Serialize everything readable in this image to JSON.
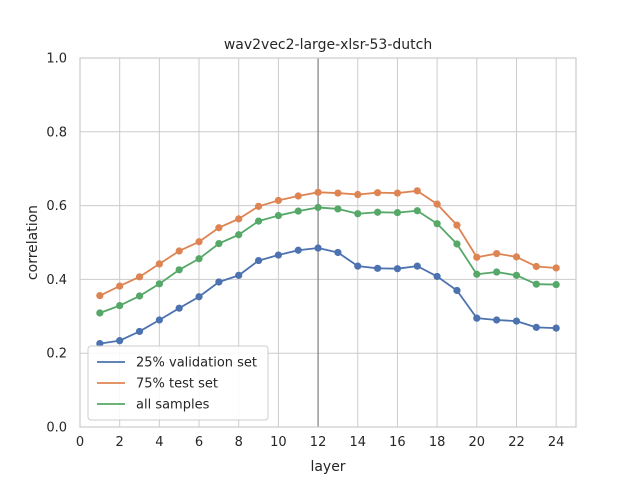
{
  "chart_data": {
    "type": "line",
    "title": "wav2vec2-large-xlsr-53-dutch",
    "xlabel": "layer",
    "ylabel": "correlation",
    "xlim": [
      0,
      25
    ],
    "ylim": [
      0.0,
      1.0
    ],
    "xticks": [
      0,
      2,
      4,
      6,
      8,
      10,
      12,
      14,
      16,
      18,
      20,
      22,
      24
    ],
    "yticks": [
      0.0,
      0.2,
      0.4,
      0.6,
      0.8,
      1.0
    ],
    "ytick_labels": [
      "0.0",
      "0.2",
      "0.4",
      "0.6",
      "0.8",
      "1.0"
    ],
    "grid": true,
    "legend_position": "lower-left",
    "vertical_reference_line": {
      "x": 12,
      "color": "#808080"
    },
    "x": [
      1,
      2,
      3,
      4,
      5,
      6,
      7,
      8,
      9,
      10,
      11,
      12,
      13,
      14,
      15,
      16,
      17,
      18,
      19,
      20,
      21,
      22,
      23,
      24
    ],
    "series": [
      {
        "name": "25% validation set",
        "color": "#4c72b0",
        "values": [
          0.226,
          0.234,
          0.259,
          0.29,
          0.322,
          0.353,
          0.393,
          0.411,
          0.451,
          0.466,
          0.479,
          0.485,
          0.473,
          0.436,
          0.43,
          0.429,
          0.436,
          0.408,
          0.37,
          0.295,
          0.29,
          0.287,
          0.27,
          0.268
        ]
      },
      {
        "name": "75% test set",
        "color": "#dd8452",
        "values": [
          0.356,
          0.382,
          0.407,
          0.442,
          0.477,
          0.502,
          0.54,
          0.564,
          0.598,
          0.614,
          0.626,
          0.636,
          0.634,
          0.63,
          0.635,
          0.634,
          0.64,
          0.604,
          0.547,
          0.46,
          0.47,
          0.461,
          0.435,
          0.431
        ]
      },
      {
        "name": "all samples",
        "color": "#55a868",
        "values": [
          0.309,
          0.329,
          0.355,
          0.388,
          0.426,
          0.456,
          0.497,
          0.521,
          0.558,
          0.573,
          0.585,
          0.595,
          0.591,
          0.578,
          0.582,
          0.581,
          0.586,
          0.551,
          0.496,
          0.414,
          0.42,
          0.411,
          0.387,
          0.386
        ]
      }
    ]
  }
}
